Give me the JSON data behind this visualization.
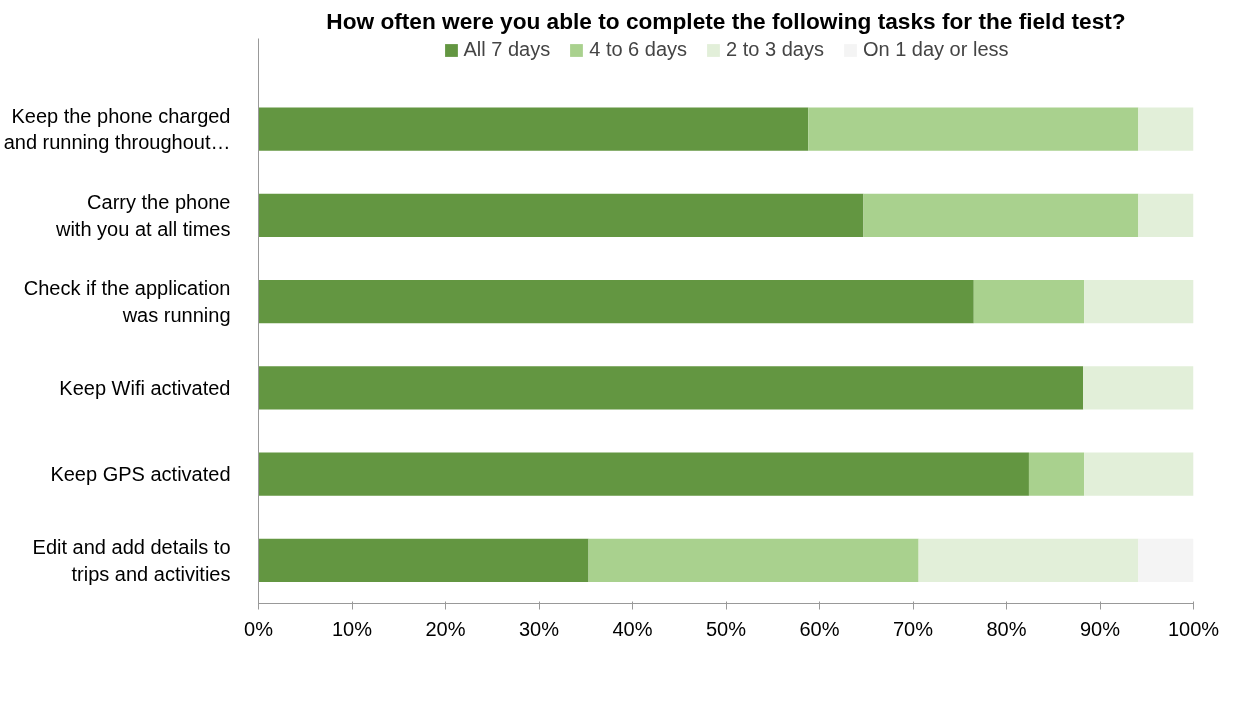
{
  "chart_data": {
    "type": "bar",
    "orientation": "horizontal",
    "stacked": true,
    "title": "How often were you able to complete the following tasks for the field test?",
    "categories": [
      "Keep the phone charged\nand running throughout…",
      "Carry the phone\nwith you at all times",
      "Check if the application\nwas running",
      "Keep Wifi activated",
      "Keep GPS activated",
      "Edit and add details to\ntrips and activities"
    ],
    "series": [
      {
        "name": "All 7 days",
        "color": "#639641",
        "values": [
          58.8,
          64.7,
          76.5,
          88.2,
          82.4,
          35.3
        ]
      },
      {
        "name": "4 to 6 days",
        "color": "#a9d18e",
        "values": [
          35.3,
          29.4,
          11.8,
          0,
          5.9,
          35.3
        ]
      },
      {
        "name": "2 to 3 days",
        "color": "#e2efd9",
        "values": [
          5.9,
          5.9,
          11.8,
          11.8,
          11.8,
          23.5
        ]
      },
      {
        "name": "On 1 day or less",
        "color": "#f4f4f4",
        "values": [
          0,
          0,
          0,
          0,
          0,
          5.9
        ]
      }
    ],
    "xlim": [
      0,
      100
    ],
    "xticks": [
      {
        "value": 0,
        "label": "0%"
      },
      {
        "value": 10,
        "label": "10%"
      },
      {
        "value": 20,
        "label": "20%"
      },
      {
        "value": 30,
        "label": "30%"
      },
      {
        "value": 40,
        "label": "40%"
      },
      {
        "value": 50,
        "label": "50%"
      },
      {
        "value": 60,
        "label": "60%"
      },
      {
        "value": 70,
        "label": "70%"
      },
      {
        "value": 80,
        "label": "80%"
      },
      {
        "value": 90,
        "label": "90%"
      },
      {
        "value": 100,
        "label": "100%"
      }
    ],
    "grid": false,
    "legend": "top"
  }
}
